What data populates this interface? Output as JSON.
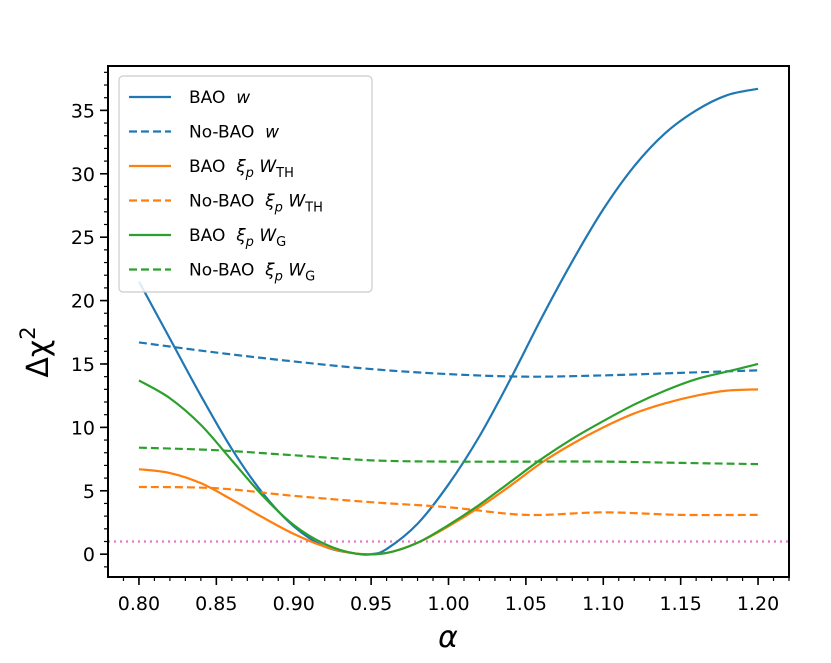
{
  "chart_data": {
    "type": "line",
    "xlabel": "α",
    "ylabel_main": "Δχ",
    "ylabel_sup": "2",
    "xlim": [
      0.78,
      1.22
    ],
    "ylim": [
      -1.8,
      38.5
    ],
    "x_ticks": [
      0.8,
      0.85,
      0.9,
      0.95,
      1.0,
      1.05,
      1.1,
      1.15,
      1.2
    ],
    "x_tick_labels": [
      "0.80",
      "0.85",
      "0.90",
      "0.95",
      "1.00",
      "1.05",
      "1.10",
      "1.15",
      "1.20"
    ],
    "x_minor_step": 0.01,
    "y_ticks": [
      0,
      5,
      10,
      15,
      20,
      25,
      30,
      35
    ],
    "y_tick_labels": [
      "0",
      "5",
      "10",
      "15",
      "20",
      "25",
      "30",
      "35"
    ],
    "y_minor_step": 1,
    "legend_position": "top-left",
    "reference_line": {
      "y": 1,
      "color": "#e377c2",
      "style": "dotted"
    },
    "series": [
      {
        "name": "BAO w",
        "legend": {
          "prefix": "BAO",
          "xi": false,
          "W": false,
          "w": true,
          "sub": ""
        },
        "color": "#1f77b4",
        "dash": "solid",
        "x": [
          0.8,
          0.82,
          0.84,
          0.86,
          0.88,
          0.9,
          0.92,
          0.94,
          0.95,
          0.96,
          0.98,
          1.0,
          1.02,
          1.04,
          1.06,
          1.08,
          1.1,
          1.12,
          1.14,
          1.16,
          1.18,
          1.2
        ],
        "y": [
          21.5,
          17.0,
          12.5,
          8.3,
          4.8,
          2.2,
          0.6,
          0.05,
          0.0,
          0.4,
          2.4,
          5.5,
          9.3,
          13.8,
          18.6,
          23.1,
          27.2,
          30.6,
          33.2,
          35.0,
          36.2,
          36.7
        ]
      },
      {
        "name": "No-BAO w",
        "legend": {
          "prefix": "No-BAO",
          "xi": false,
          "W": false,
          "w": true,
          "sub": ""
        },
        "color": "#1f77b4",
        "dash": "dashed",
        "x": [
          0.8,
          0.85,
          0.9,
          0.95,
          1.0,
          1.05,
          1.1,
          1.15,
          1.2
        ],
        "y": [
          16.7,
          15.9,
          15.2,
          14.6,
          14.2,
          14.0,
          14.1,
          14.3,
          14.5
        ]
      },
      {
        "name": "BAO ξp WTH",
        "legend": {
          "prefix": "BAO",
          "xi": true,
          "W": true,
          "w": false,
          "sub": "TH"
        },
        "color": "#ff7f0e",
        "dash": "solid",
        "x": [
          0.8,
          0.82,
          0.84,
          0.86,
          0.88,
          0.9,
          0.92,
          0.94,
          0.96,
          0.98,
          1.0,
          1.02,
          1.04,
          1.06,
          1.08,
          1.1,
          1.12,
          1.14,
          1.16,
          1.18,
          1.2
        ],
        "y": [
          6.7,
          6.4,
          5.6,
          4.3,
          2.9,
          1.6,
          0.6,
          0.05,
          0.1,
          0.9,
          2.2,
          3.7,
          5.4,
          7.2,
          8.7,
          10.0,
          11.1,
          11.9,
          12.5,
          12.9,
          13.0
        ]
      },
      {
        "name": "No-BAO ξp WTH",
        "legend": {
          "prefix": "No-BAO",
          "xi": true,
          "W": true,
          "w": false,
          "sub": "TH"
        },
        "color": "#ff7f0e",
        "dash": "dashed",
        "x": [
          0.8,
          0.85,
          0.9,
          0.95,
          1.0,
          1.05,
          1.1,
          1.15,
          1.2
        ],
        "y": [
          5.3,
          5.2,
          4.6,
          4.1,
          3.7,
          3.1,
          3.3,
          3.1,
          3.1
        ]
      },
      {
        "name": "BAO ξp WG",
        "legend": {
          "prefix": "BAO",
          "xi": true,
          "W": true,
          "w": false,
          "sub": "G"
        },
        "color": "#2ca02c",
        "dash": "solid",
        "x": [
          0.8,
          0.82,
          0.84,
          0.86,
          0.88,
          0.9,
          0.92,
          0.94,
          0.96,
          0.98,
          1.0,
          1.02,
          1.04,
          1.06,
          1.08,
          1.1,
          1.12,
          1.14,
          1.16,
          1.18,
          1.2
        ],
        "y": [
          13.7,
          12.3,
          10.2,
          7.4,
          4.6,
          2.3,
          0.8,
          0.05,
          0.1,
          0.9,
          2.3,
          3.9,
          5.7,
          7.5,
          9.1,
          10.5,
          11.8,
          12.9,
          13.8,
          14.4,
          15.0
        ]
      },
      {
        "name": "No-BAO ξp WG",
        "legend": {
          "prefix": "No-BAO",
          "xi": true,
          "W": true,
          "w": false,
          "sub": "G"
        },
        "color": "#2ca02c",
        "dash": "dashed",
        "x": [
          0.8,
          0.85,
          0.9,
          0.95,
          1.0,
          1.05,
          1.1,
          1.15,
          1.2
        ],
        "y": [
          8.4,
          8.2,
          7.8,
          7.4,
          7.3,
          7.3,
          7.3,
          7.2,
          7.1
        ]
      }
    ]
  }
}
